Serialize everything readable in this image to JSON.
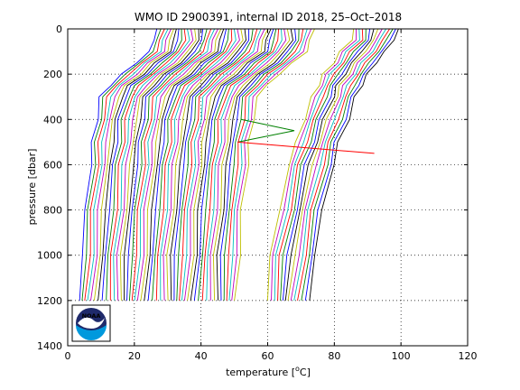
{
  "chart_data": {
    "type": "line",
    "title": "WMO ID 2900391, internal ID 2018, 25–Oct–2018",
    "xlabel": "temperature [°C]",
    "xlabel_parts": [
      "temperature [",
      "o",
      "C]"
    ],
    "ylabel": "pressure [dbar]",
    "xlim": [
      0,
      120
    ],
    "ylim": [
      0,
      1400
    ],
    "y_reversed": true,
    "grid": true,
    "grid_style": "dotted",
    "x_ticks": [
      "0",
      "20",
      "40",
      "60",
      "80",
      "100",
      "120"
    ],
    "y_ticks": [
      "0",
      "200",
      "400",
      "600",
      "800",
      "1000",
      "1200",
      "1400"
    ],
    "waterfall": {
      "pressure": [
        0,
        50,
        100,
        150,
        200,
        250,
        300,
        400,
        500,
        600,
        800,
        1000,
        1200
      ],
      "group_a": {
        "profile_count": 48,
        "base_temperature": [
          26.5,
          26.0,
          24.5,
          20.5,
          16.5,
          12.5,
          10.0,
          8.6,
          7.6,
          6.8,
          5.4,
          4.3,
          3.5
        ],
        "offset_step": 1.0
      },
      "group_b": {
        "profile_count": 14,
        "base_temperature": [
          99.0,
          98.0,
          95.0,
          92.5,
          90.0,
          88.0,
          86.5,
          84.0,
          81.5,
          79.5,
          76.5,
          74.0,
          72.5
        ],
        "offset_step": -1.0
      },
      "colors": [
        "#0000ff",
        "#008000",
        "#ff0000",
        "#00bfbf",
        "#bf00bf",
        "#bfbf00",
        "#000000"
      ]
    },
    "series": [
      {
        "color": "#008000",
        "points": [
          [
            51,
            500
          ],
          [
            68,
            450
          ],
          [
            52,
            400
          ]
        ]
      },
      {
        "color": "#ff0000",
        "points": [
          [
            51,
            500
          ],
          [
            92,
            550
          ]
        ]
      }
    ]
  },
  "logo": {
    "text": "NOAA",
    "colors": {
      "dark": "#1f2a6b",
      "light": "#0099dd",
      "wave": "#ffffff"
    }
  }
}
